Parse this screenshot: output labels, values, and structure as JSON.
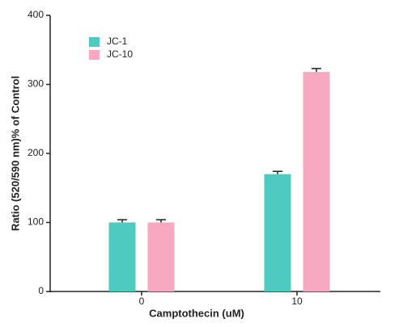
{
  "chart_data": {
    "type": "bar",
    "x_label": "Camptothecin (uM)",
    "y_label": "Ratio (520/590 nm)% of Control",
    "categories": [
      "0",
      "10"
    ],
    "series": [
      {
        "name": "JC-1",
        "color": "#4ecac1",
        "values": [
          100,
          170
        ],
        "errors": [
          4,
          4
        ]
      },
      {
        "name": "JC-10",
        "color": "#f7a9c1",
        "values": [
          100,
          318
        ],
        "errors": [
          4,
          5
        ]
      }
    ],
    "ylim": [
      0,
      400
    ],
    "yticks": [
      0,
      100,
      200,
      300,
      400
    ],
    "legend": "upper left",
    "grid": false
  }
}
